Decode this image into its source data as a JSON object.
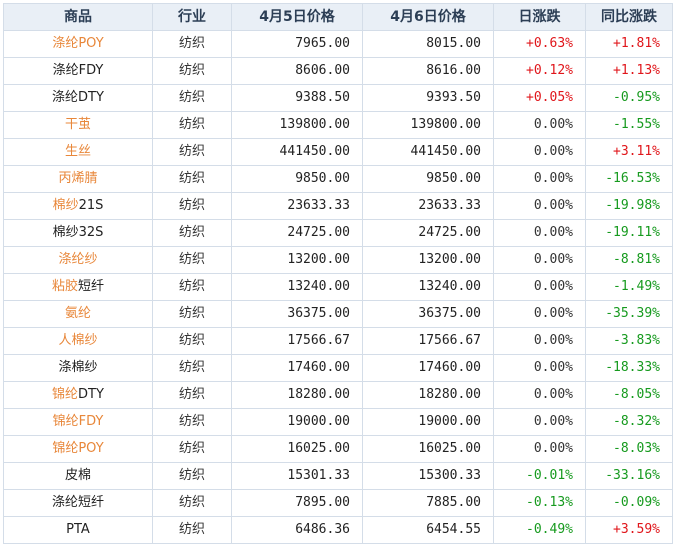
{
  "headers": [
    "商品",
    "行业",
    "4月5日价格",
    "4月6日价格",
    "日涨跌",
    "同比涨跌"
  ],
  "colors": {
    "up": "#e0151a",
    "down": "#169a1e",
    "link": "#e8873a"
  },
  "rows": [
    {
      "name": "涤纶POY",
      "link": "full",
      "industry": "纺织",
      "p5": "7965.00",
      "p6": "8015.00",
      "daily": "+0.63%",
      "yoy": "+1.81%"
    },
    {
      "name": "涤纶FDY",
      "link": "none",
      "industry": "纺织",
      "p5": "8606.00",
      "p6": "8616.00",
      "daily": "+0.12%",
      "yoy": "+1.13%"
    },
    {
      "name": "涤纶DTY",
      "link": "none",
      "industry": "纺织",
      "p5": "9388.50",
      "p6": "9393.50",
      "daily": "+0.05%",
      "yoy": "-0.95%"
    },
    {
      "name": "干茧",
      "link": "full",
      "industry": "纺织",
      "p5": "139800.00",
      "p6": "139800.00",
      "daily": "0.00%",
      "yoy": "-1.55%"
    },
    {
      "name": "生丝",
      "link": "full",
      "industry": "纺织",
      "p5": "441450.00",
      "p6": "441450.00",
      "daily": "0.00%",
      "yoy": "+3.11%"
    },
    {
      "name": "丙烯腈",
      "link": "full",
      "industry": "纺织",
      "p5": "9850.00",
      "p6": "9850.00",
      "daily": "0.00%",
      "yoy": "-16.53%"
    },
    {
      "name": "棉纱21S",
      "link": "partial",
      "linkText": "棉纱",
      "restText": "21S",
      "industry": "纺织",
      "p5": "23633.33",
      "p6": "23633.33",
      "daily": "0.00%",
      "yoy": "-19.98%"
    },
    {
      "name": "棉纱32S",
      "link": "none",
      "industry": "纺织",
      "p5": "24725.00",
      "p6": "24725.00",
      "daily": "0.00%",
      "yoy": "-19.11%"
    },
    {
      "name": "涤纶纱",
      "link": "full",
      "industry": "纺织",
      "p5": "13200.00",
      "p6": "13200.00",
      "daily": "0.00%",
      "yoy": "-8.81%"
    },
    {
      "name": "粘胶短纤",
      "link": "partial",
      "linkText": "粘胶",
      "restText": "短纤",
      "industry": "纺织",
      "p5": "13240.00",
      "p6": "13240.00",
      "daily": "0.00%",
      "yoy": "-1.49%"
    },
    {
      "name": "氨纶",
      "link": "full",
      "industry": "纺织",
      "p5": "36375.00",
      "p6": "36375.00",
      "daily": "0.00%",
      "yoy": "-35.39%"
    },
    {
      "name": "人棉纱",
      "link": "full",
      "industry": "纺织",
      "p5": "17566.67",
      "p6": "17566.67",
      "daily": "0.00%",
      "yoy": "-3.83%"
    },
    {
      "name": "涤棉纱",
      "link": "none",
      "industry": "纺织",
      "p5": "17460.00",
      "p6": "17460.00",
      "daily": "0.00%",
      "yoy": "-18.33%"
    },
    {
      "name": "锦纶DTY",
      "link": "partial",
      "linkText": "锦纶",
      "restText": "DTY",
      "industry": "纺织",
      "p5": "18280.00",
      "p6": "18280.00",
      "daily": "0.00%",
      "yoy": "-8.05%"
    },
    {
      "name": "锦纶FDY",
      "link": "full",
      "industry": "纺织",
      "p5": "19000.00",
      "p6": "19000.00",
      "daily": "0.00%",
      "yoy": "-8.32%"
    },
    {
      "name": "锦纶POY",
      "link": "full",
      "industry": "纺织",
      "p5": "16025.00",
      "p6": "16025.00",
      "daily": "0.00%",
      "yoy": "-8.03%"
    },
    {
      "name": "皮棉",
      "link": "none",
      "industry": "纺织",
      "p5": "15301.33",
      "p6": "15300.33",
      "daily": "-0.01%",
      "yoy": "-33.16%"
    },
    {
      "name": "涤纶短纤",
      "link": "none",
      "industry": "纺织",
      "p5": "7895.00",
      "p6": "7885.00",
      "daily": "-0.13%",
      "yoy": "-0.09%"
    },
    {
      "name": "PTA",
      "link": "none",
      "industry": "纺织",
      "p5": "6486.36",
      "p6": "6454.55",
      "daily": "-0.49%",
      "yoy": "+3.59%"
    }
  ]
}
